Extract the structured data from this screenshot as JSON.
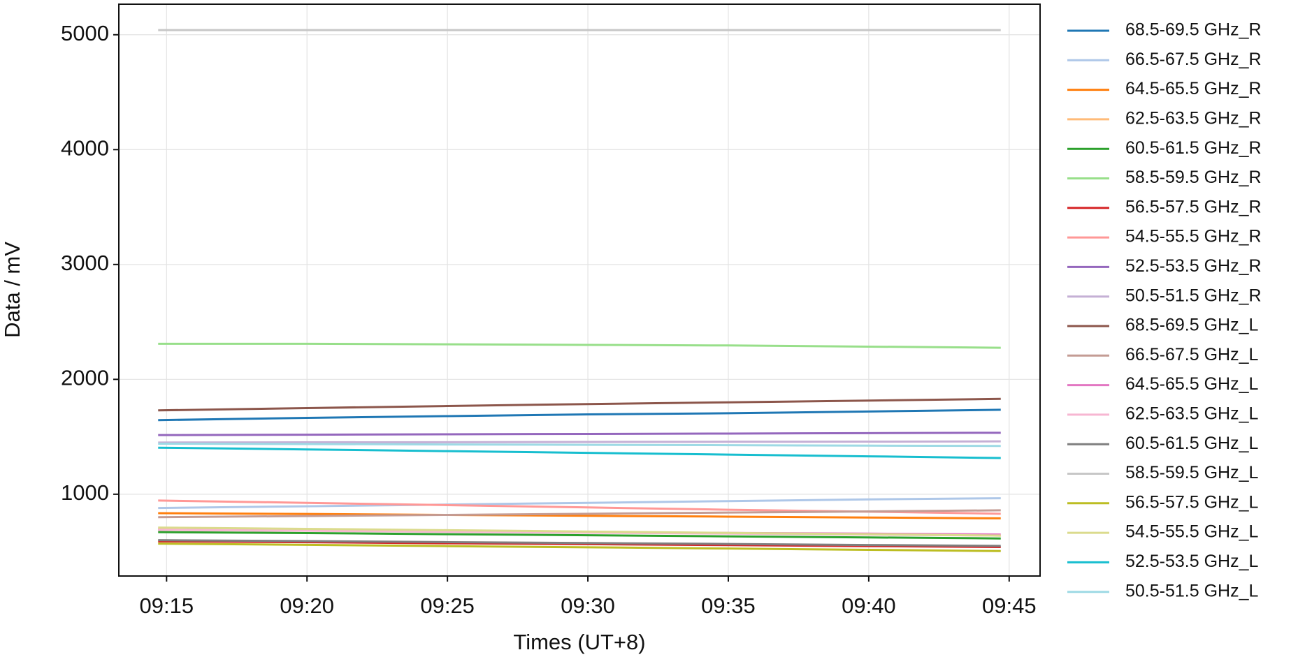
{
  "chart_data": {
    "type": "line",
    "xlabel": "Times (UT+8)",
    "ylabel": "Data / mV",
    "x": [
      14.7,
      20,
      25,
      30,
      35,
      40,
      44.7
    ],
    "xlim": [
      13.3,
      46.1
    ],
    "xticks": [
      {
        "value": 15,
        "label": "09:15"
      },
      {
        "value": 20,
        "label": "09:20"
      },
      {
        "value": 25,
        "label": "09:25"
      },
      {
        "value": 30,
        "label": "09:30"
      },
      {
        "value": 35,
        "label": "09:35"
      },
      {
        "value": 40,
        "label": "09:40"
      },
      {
        "value": 45,
        "label": "09:45"
      }
    ],
    "ylim": [
      288,
      5266
    ],
    "yticks": [
      1000,
      2000,
      3000,
      4000,
      5000
    ],
    "grid": true,
    "legend": "outside right",
    "series": [
      {
        "name": "68.5-69.5 GHz_R",
        "color": "#1f77b4",
        "values": [
          1645,
          1665,
          1680,
          1695,
          1705,
          1720,
          1735
        ]
      },
      {
        "name": "66.5-67.5 GHz_R",
        "color": "#aec7e8",
        "values": [
          880,
          895,
          910,
          925,
          940,
          955,
          965
        ]
      },
      {
        "name": "64.5-65.5 GHz_R",
        "color": "#ff7f0e",
        "values": [
          835,
          828,
          820,
          812,
          805,
          797,
          790
        ]
      },
      {
        "name": "62.5-63.5 GHz_R",
        "color": "#ffbb78",
        "values": [
          700,
          690,
          680,
          670,
          660,
          650,
          640
        ]
      },
      {
        "name": "60.5-61.5 GHz_R",
        "color": "#2ca02c",
        "values": [
          670,
          662,
          652,
          643,
          633,
          624,
          615
        ]
      },
      {
        "name": "58.5-59.5 GHz_R",
        "color": "#98df8a",
        "values": [
          2310,
          2310,
          2305,
          2300,
          2295,
          2285,
          2275
        ]
      },
      {
        "name": "56.5-57.5 GHz_R",
        "color": "#d62728",
        "values": [
          590,
          582,
          573,
          565,
          557,
          548,
          540
        ]
      },
      {
        "name": "54.5-55.5 GHz_R",
        "color": "#ff9896",
        "values": [
          945,
          925,
          905,
          885,
          865,
          848,
          830
        ]
      },
      {
        "name": "52.5-53.5 GHz_R",
        "color": "#9467bd",
        "values": [
          1515,
          1518,
          1522,
          1525,
          1528,
          1532,
          1535
        ]
      },
      {
        "name": "50.5-51.5 GHz_R",
        "color": "#c5b0d5",
        "values": [
          1450,
          1452,
          1453,
          1455,
          1457,
          1458,
          1460
        ]
      },
      {
        "name": "68.5-69.5 GHz_L",
        "color": "#8c564b",
        "values": [
          1730,
          1750,
          1768,
          1785,
          1800,
          1815,
          1830
        ]
      },
      {
        "name": "66.5-67.5 GHz_L",
        "color": "#c49c94",
        "values": [
          800,
          810,
          820,
          830,
          840,
          850,
          860
        ]
      },
      {
        "name": "64.5-65.5 GHz_L",
        "color": "#e377c2",
        "values": [
          690,
          683,
          677,
          670,
          663,
          657,
          650
        ]
      },
      {
        "name": "62.5-63.5 GHz_L",
        "color": "#f7b6d2",
        "values": [
          690,
          682,
          673,
          665,
          657,
          648,
          640
        ]
      },
      {
        "name": "60.5-61.5 GHz_L",
        "color": "#7f7f7f",
        "values": [
          600,
          592,
          583,
          575,
          567,
          558,
          550
        ]
      },
      {
        "name": "58.5-59.5 GHz_L",
        "color": "#c7c7c7",
        "values": [
          5040,
          5040,
          5040,
          5040,
          5040,
          5040,
          5040
        ]
      },
      {
        "name": "56.5-57.5 GHz_L",
        "color": "#bcbd22",
        "values": [
          570,
          559,
          548,
          538,
          527,
          516,
          505
        ]
      },
      {
        "name": "54.5-55.5 GHz_L",
        "color": "#dbdb8d",
        "values": [
          710,
          698,
          687,
          675,
          663,
          652,
          640
        ]
      },
      {
        "name": "52.5-53.5 GHz_L",
        "color": "#17becf",
        "values": [
          1405,
          1390,
          1375,
          1360,
          1345,
          1330,
          1315
        ]
      },
      {
        "name": "50.5-51.5 GHz_L",
        "color": "#9edae5",
        "values": [
          1440,
          1437,
          1433,
          1430,
          1427,
          1423,
          1420
        ]
      }
    ]
  }
}
